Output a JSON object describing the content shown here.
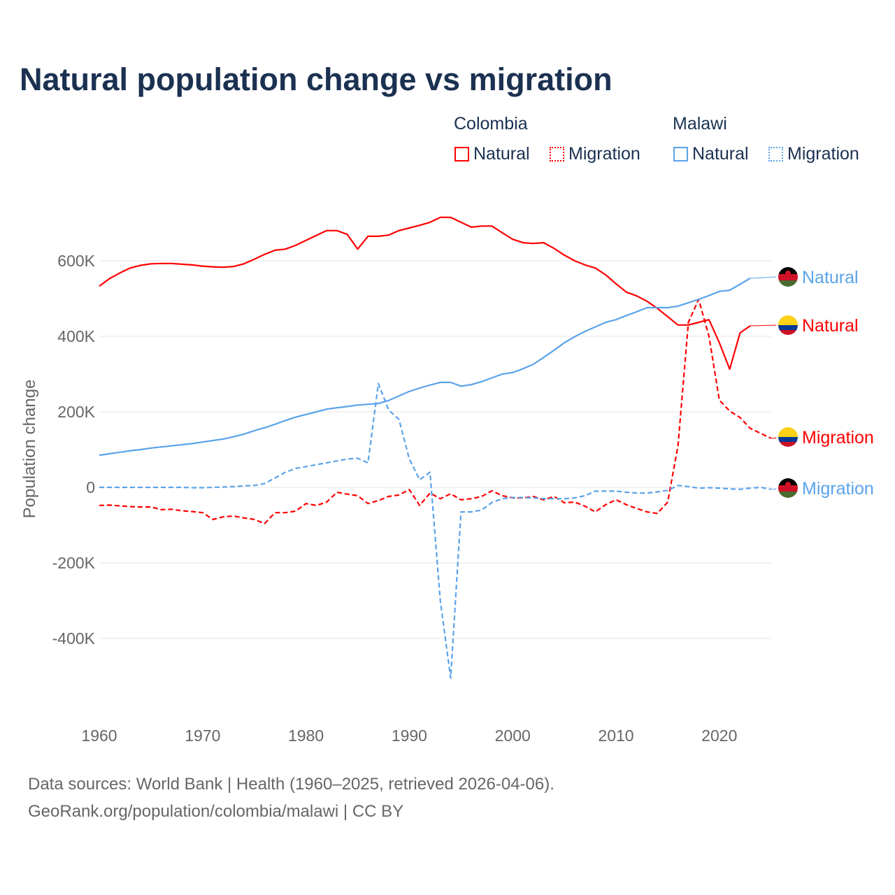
{
  "chart_data": {
    "type": "line",
    "title": "Natural population change vs migration",
    "xlabel": "",
    "ylabel": "Population change",
    "xlim": [
      1960,
      2025
    ],
    "ylim": [
      -520000,
      720000
    ],
    "x_ticks": [
      "1960",
      "1970",
      "1980",
      "1990",
      "2000",
      "2010",
      "2020"
    ],
    "y_ticks": [
      {
        "v": 600000,
        "label": "600K"
      },
      {
        "v": 400000,
        "label": "400K"
      },
      {
        "v": 200000,
        "label": "200K"
      },
      {
        "v": 0,
        "label": "0"
      },
      {
        "v": -200000,
        "label": "-200K"
      },
      {
        "v": -400000,
        "label": "-400K"
      }
    ],
    "grid": true,
    "legend": {
      "placement": "top-right",
      "groups": [
        {
          "name": "Colombia",
          "items": [
            "Natural",
            "Migration"
          ]
        },
        {
          "name": "Malawi",
          "items": [
            "Natural",
            "Migration"
          ]
        }
      ]
    },
    "series": [
      {
        "name": "Colombia Natural",
        "country": "Colombia",
        "kind": "Natural",
        "label": "Natural",
        "color": "#ff0000",
        "dash": false,
        "flag": "colombia-flag",
        "start": 1960,
        "values": [
          533,
          553,
          568,
          581,
          588,
          592,
          593,
          593,
          591,
          589,
          586,
          584,
          583,
          585,
          592,
          604,
          617,
          628,
          631,
          641,
          654,
          667,
          680,
          680,
          670,
          631,
          665,
          665,
          668,
          680,
          687,
          694,
          702,
          715,
          715,
          702,
          689,
          692,
          692,
          674,
          657,
          648,
          646,
          648,
          633,
          615,
          600,
          589,
          581,
          563,
          539,
          517,
          507,
          493,
          474,
          452,
          430,
          430,
          437,
          444,
          383,
          313,
          409,
          428
        ]
      },
      {
        "name": "Colombia Migration",
        "country": "Colombia",
        "kind": "Migration",
        "label": "Migration",
        "color": "#ff0000",
        "dash": true,
        "flag": "colombia-flag",
        "start": 1960,
        "values": [
          -48,
          -47,
          -49,
          -51,
          -52,
          -52,
          -59,
          -58,
          -62,
          -64,
          -67,
          -85,
          -78,
          -76,
          -81,
          -85,
          -96,
          -67,
          -67,
          -63,
          -43,
          -48,
          -39,
          -13,
          -18,
          -22,
          -43,
          -35,
          -24,
          -20,
          -6,
          -48,
          -15,
          -30,
          -17,
          -33,
          -30,
          -24,
          -9,
          -22,
          -28,
          -28,
          -24,
          -33,
          -24,
          -41,
          -39,
          -50,
          -65,
          -46,
          -33,
          -46,
          -56,
          -65,
          -69,
          -39,
          111,
          437,
          498,
          400,
          231,
          202,
          185,
          156,
          143,
          130
        ]
      },
      {
        "name": "Malawi Natural",
        "country": "Malawi",
        "kind": "Natural",
        "label": "Natural",
        "color": "#5ba3ea",
        "dash": false,
        "flag": "malawi-flag",
        "start": 1960,
        "values": [
          85,
          89,
          93,
          97,
          100,
          104,
          107,
          110,
          113,
          116,
          120,
          124,
          128,
          134,
          141,
          150,
          158,
          167,
          177,
          186,
          193,
          200,
          207,
          211,
          214,
          218,
          220,
          222,
          230,
          242,
          254,
          263,
          271,
          278,
          278,
          268,
          272,
          280,
          290,
          300,
          304,
          314,
          326,
          344,
          363,
          383,
          399,
          413,
          425,
          437,
          444,
          455,
          465,
          476,
          476,
          476,
          480,
          489,
          498,
          508,
          519,
          522,
          538,
          554
        ]
      },
      {
        "name": "Malawi Migration",
        "country": "Malawi",
        "kind": "Migration",
        "label": "Migration",
        "color": "#5ba3ea",
        "dash": true,
        "flag": "malawi-flag",
        "start": 1960,
        "values": [
          0,
          0,
          0,
          0,
          0,
          0,
          0,
          0,
          0,
          -1,
          -1,
          0,
          1,
          2,
          4,
          5,
          10,
          25,
          40,
          50,
          55,
          60,
          65,
          70,
          75,
          77,
          65,
          275,
          205,
          180,
          75,
          20,
          40,
          -300,
          -505,
          -65,
          -65,
          -60,
          -40,
          -30,
          -27,
          -27,
          -28,
          -30,
          -30,
          -30,
          -28,
          -22,
          -10,
          -10,
          -10,
          -13,
          -15,
          -15,
          -12,
          -8,
          5,
          2,
          -2,
          -1,
          -2,
          -4,
          -5,
          -2,
          0,
          -5
        ]
      }
    ],
    "value_units": "thousands"
  },
  "footer": {
    "line1": "Data sources: World Bank | Health (1960–2025, retrieved 2026-04-06).",
    "line2": "GeoRank.org/population/colombia/malawi | CC BY"
  }
}
